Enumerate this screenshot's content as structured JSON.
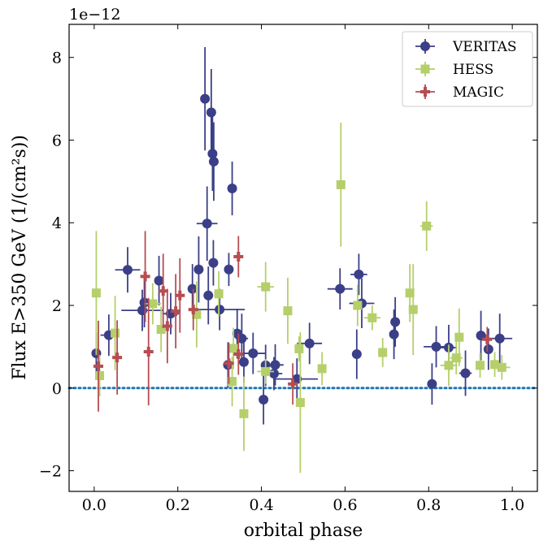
{
  "chart_data": {
    "type": "scatter",
    "xlabel": "orbital phase",
    "ylabel": "Flux E>350 GeV (1/(cm²s))",
    "y_offset_label": "1e−12",
    "xlim": [
      -0.06,
      1.06
    ],
    "ylim": [
      -2.5,
      8.8
    ],
    "xticks": [
      0.0,
      0.2,
      0.4,
      0.6,
      0.8,
      1.0
    ],
    "xtick_labels": [
      "0.0",
      "0.2",
      "0.4",
      "0.6",
      "0.8",
      "1.0"
    ],
    "yticks": [
      -2,
      0,
      2,
      4,
      6,
      8
    ],
    "ytick_labels": [
      "−2",
      "0",
      "2",
      "4",
      "6",
      "8"
    ],
    "reference_line": {
      "y": 0,
      "style": "dotted",
      "color": "#1f77b4"
    },
    "legend_position": "upper right",
    "grid": false,
    "series": [
      {
        "name": "VERITAS",
        "color": "#3b3f87",
        "marker": "circle",
        "points": [
          {
            "x": 0.005,
            "y": 0.84,
            "xerr": 0.005,
            "yerr": 0.5
          },
          {
            "x": 0.035,
            "y": 1.28,
            "xerr": 0.02,
            "yerr": 0.5
          },
          {
            "x": 0.08,
            "y": 2.86,
            "xerr": 0.03,
            "yerr": 0.55
          },
          {
            "x": 0.115,
            "y": 1.88,
            "xerr": 0.05,
            "yerr": 0.5
          },
          {
            "x": 0.12,
            "y": 2.07,
            "xerr": 0.01,
            "yerr": 0.6
          },
          {
            "x": 0.155,
            "y": 2.6,
            "xerr": 0.01,
            "yerr": 0.6
          },
          {
            "x": 0.183,
            "y": 1.8,
            "xerr": 0.02,
            "yerr": 0.5
          },
          {
            "x": 0.235,
            "y": 2.4,
            "xerr": 0.01,
            "yerr": 0.6
          },
          {
            "x": 0.25,
            "y": 2.87,
            "xerr": 0.01,
            "yerr": 0.8
          },
          {
            "x": 0.265,
            "y": 7.0,
            "xerr": 0.005,
            "yerr": 1.25
          },
          {
            "x": 0.27,
            "y": 3.98,
            "xerr": 0.025,
            "yerr": 0.9
          },
          {
            "x": 0.273,
            "y": 2.24,
            "xerr": 0.005,
            "yerr": 0.7
          },
          {
            "x": 0.28,
            "y": 6.67,
            "xerr": 0.005,
            "yerr": 1.05
          },
          {
            "x": 0.283,
            "y": 5.67,
            "xerr": 0.005,
            "yerr": 0.9
          },
          {
            "x": 0.285,
            "y": 3.03,
            "xerr": 0.005,
            "yerr": 0.55
          },
          {
            "x": 0.286,
            "y": 5.48,
            "xerr": 0.005,
            "yerr": 0.95
          },
          {
            "x": 0.3,
            "y": 1.9,
            "xerr": 0.06,
            "yerr": 0.5
          },
          {
            "x": 0.32,
            "y": 0.56,
            "xerr": 0.005,
            "yerr": 0.55
          },
          {
            "x": 0.322,
            "y": 2.87,
            "xerr": 0.005,
            "yerr": 0.4
          },
          {
            "x": 0.33,
            "y": 4.83,
            "xerr": 0.005,
            "yerr": 0.65
          },
          {
            "x": 0.342,
            "y": 1.32,
            "xerr": 0.005,
            "yerr": 0.6
          },
          {
            "x": 0.353,
            "y": 1.2,
            "xerr": 0.015,
            "yerr": 0.6
          },
          {
            "x": 0.358,
            "y": 0.63,
            "xerr": 0.005,
            "yerr": 0.5
          },
          {
            "x": 0.38,
            "y": 0.84,
            "xerr": 0.03,
            "yerr": 0.5
          },
          {
            "x": 0.405,
            "y": -0.28,
            "xerr": 0.005,
            "yerr": 0.6
          },
          {
            "x": 0.41,
            "y": 0.55,
            "xerr": 0.005,
            "yerr": 0.5
          },
          {
            "x": 0.43,
            "y": 0.35,
            "xerr": 0.02,
            "yerr": 0.4
          },
          {
            "x": 0.433,
            "y": 0.56,
            "xerr": 0.02,
            "yerr": 0.5
          },
          {
            "x": 0.485,
            "y": 0.22,
            "xerr": 0.05,
            "yerr": 0.5
          },
          {
            "x": 0.515,
            "y": 1.08,
            "xerr": 0.03,
            "yerr": 0.5
          },
          {
            "x": 0.588,
            "y": 2.4,
            "xerr": 0.03,
            "yerr": 0.5
          },
          {
            "x": 0.628,
            "y": 0.82,
            "xerr": 0.01,
            "yerr": 0.6
          },
          {
            "x": 0.633,
            "y": 2.75,
            "xerr": 0.02,
            "yerr": 0.5
          },
          {
            "x": 0.64,
            "y": 2.05,
            "xerr": 0.03,
            "yerr": 0.6
          },
          {
            "x": 0.717,
            "y": 1.3,
            "xerr": 0.01,
            "yerr": 0.6
          },
          {
            "x": 0.72,
            "y": 1.6,
            "xerr": 0.005,
            "yerr": 0.6
          },
          {
            "x": 0.808,
            "y": 0.1,
            "xerr": 0.005,
            "yerr": 0.5
          },
          {
            "x": 0.818,
            "y": 1.0,
            "xerr": 0.03,
            "yerr": 0.5
          },
          {
            "x": 0.848,
            "y": 0.98,
            "xerr": 0.02,
            "yerr": 0.55
          },
          {
            "x": 0.888,
            "y": 0.36,
            "xerr": 0.015,
            "yerr": 0.55
          },
          {
            "x": 0.925,
            "y": 1.27,
            "xerr": 0.005,
            "yerr": 0.6
          },
          {
            "x": 0.943,
            "y": 0.94,
            "xerr": 0.005,
            "yerr": 0.5
          },
          {
            "x": 0.97,
            "y": 1.2,
            "xerr": 0.03,
            "yerr": 0.6
          }
        ]
      },
      {
        "name": "HESS",
        "color": "#b5cf6b",
        "marker": "square",
        "points": [
          {
            "x": 0.005,
            "y": 2.3,
            "xerr": 0.005,
            "yerr": 1.5
          },
          {
            "x": 0.013,
            "y": 0.3,
            "xerr": 0.01,
            "yerr": 0.5
          },
          {
            "x": 0.05,
            "y": 1.33,
            "xerr": 0.01,
            "yerr": 0.9
          },
          {
            "x": 0.14,
            "y": 2.04,
            "xerr": 0.02,
            "yerr": 0.5
          },
          {
            "x": 0.16,
            "y": 1.42,
            "xerr": 0.005,
            "yerr": 0.55
          },
          {
            "x": 0.245,
            "y": 1.78,
            "xerr": 0.01,
            "yerr": 0.8
          },
          {
            "x": 0.298,
            "y": 2.28,
            "xerr": 0.005,
            "yerr": 0.55
          },
          {
            "x": 0.33,
            "y": 0.16,
            "xerr": 0.005,
            "yerr": 0.6
          },
          {
            "x": 0.333,
            "y": 0.96,
            "xerr": 0.005,
            "yerr": 0.5
          },
          {
            "x": 0.358,
            "y": -0.62,
            "xerr": 0.005,
            "yerr": 0.9
          },
          {
            "x": 0.41,
            "y": 2.45,
            "xerr": 0.02,
            "yerr": 0.6
          },
          {
            "x": 0.41,
            "y": 0.4,
            "xerr": 0.02,
            "yerr": 0.3
          },
          {
            "x": 0.463,
            "y": 1.87,
            "xerr": 0.005,
            "yerr": 0.8
          },
          {
            "x": 0.49,
            "y": 0.95,
            "xerr": 0.005,
            "yerr": 0.3
          },
          {
            "x": 0.493,
            "y": -0.35,
            "xerr": 0.005,
            "yerr": 1.7
          },
          {
            "x": 0.545,
            "y": 0.47,
            "xerr": 0.01,
            "yerr": 0.4
          },
          {
            "x": 0.59,
            "y": 4.92,
            "xerr": 0.005,
            "yerr": 1.5
          },
          {
            "x": 0.63,
            "y": 2.0,
            "xerr": 0.01,
            "yerr": 0.5
          },
          {
            "x": 0.665,
            "y": 1.7,
            "xerr": 0.02,
            "yerr": 0.3
          },
          {
            "x": 0.69,
            "y": 0.86,
            "xerr": 0.005,
            "yerr": 0.35
          },
          {
            "x": 0.755,
            "y": 2.3,
            "xerr": 0.01,
            "yerr": 0.7
          },
          {
            "x": 0.763,
            "y": 1.9,
            "xerr": 0.005,
            "yerr": 1.1
          },
          {
            "x": 0.795,
            "y": 3.92,
            "xerr": 0.015,
            "yerr": 0.6
          },
          {
            "x": 0.848,
            "y": 0.55,
            "xerr": 0.02,
            "yerr": 0.5
          },
          {
            "x": 0.866,
            "y": 0.73,
            "xerr": 0.015,
            "yerr": 0.4
          },
          {
            "x": 0.873,
            "y": 1.23,
            "xerr": 0.005,
            "yerr": 0.7
          },
          {
            "x": 0.923,
            "y": 0.55,
            "xerr": 0.01,
            "yerr": 0.3
          },
          {
            "x": 0.958,
            "y": 0.57,
            "xerr": 0.01,
            "yerr": 0.3
          },
          {
            "x": 0.975,
            "y": 0.5,
            "xerr": 0.02,
            "yerr": 0.3
          }
        ]
      },
      {
        "name": "MAGIC",
        "color": "#b64d52",
        "marker": "plus",
        "points": [
          {
            "x": 0.01,
            "y": 0.53,
            "xerr": 0.005,
            "yerr": 1.1
          },
          {
            "x": 0.055,
            "y": 0.74,
            "xerr": 0.005,
            "yerr": 0.9
          },
          {
            "x": 0.122,
            "y": 2.7,
            "xerr": 0.005,
            "yerr": 1.1
          },
          {
            "x": 0.13,
            "y": 0.88,
            "xerr": 0.005,
            "yerr": 1.3
          },
          {
            "x": 0.165,
            "y": 2.35,
            "xerr": 0.005,
            "yerr": 0.9
          },
          {
            "x": 0.175,
            "y": 1.5,
            "xerr": 0.005,
            "yerr": 0.9
          },
          {
            "x": 0.195,
            "y": 1.86,
            "xerr": 0.005,
            "yerr": 0.9
          },
          {
            "x": 0.205,
            "y": 2.24,
            "xerr": 0.005,
            "yerr": 0.9
          },
          {
            "x": 0.237,
            "y": 1.9,
            "xerr": 0.005,
            "yerr": 0.5
          },
          {
            "x": 0.322,
            "y": 0.6,
            "xerr": 0.005,
            "yerr": 0.5
          },
          {
            "x": 0.345,
            "y": 3.18,
            "xerr": 0.005,
            "yerr": 0.5
          },
          {
            "x": 0.345,
            "y": 0.82,
            "xerr": 0.005,
            "yerr": 0.5
          },
          {
            "x": 0.475,
            "y": 0.1,
            "xerr": 0.005,
            "yerr": 0.5
          },
          {
            "x": 0.94,
            "y": 1.18,
            "xerr": 0.005,
            "yerr": 0.3
          }
        ]
      }
    ]
  }
}
